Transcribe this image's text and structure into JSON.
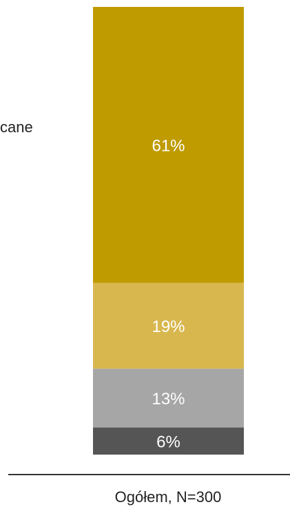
{
  "chart_data": {
    "type": "bar",
    "stacked": true,
    "orientation": "vertical",
    "categories": [
      "Ogółem, N=300"
    ],
    "series": [
      {
        "values": [
          6
        ],
        "label": "6%",
        "color": "#555555"
      },
      {
        "values": [
          13
        ],
        "label": "13%",
        "color": "#a6a6a6"
      },
      {
        "values": [
          19
        ],
        "label": "19%",
        "color": "#d8b74e"
      },
      {
        "values": [
          61
        ],
        "label": "61%",
        "color": "#bf9b00"
      }
    ],
    "legend_fragment": "cane",
    "ylim": [
      0,
      99
    ],
    "grid": false,
    "axis_color": "#333333"
  }
}
